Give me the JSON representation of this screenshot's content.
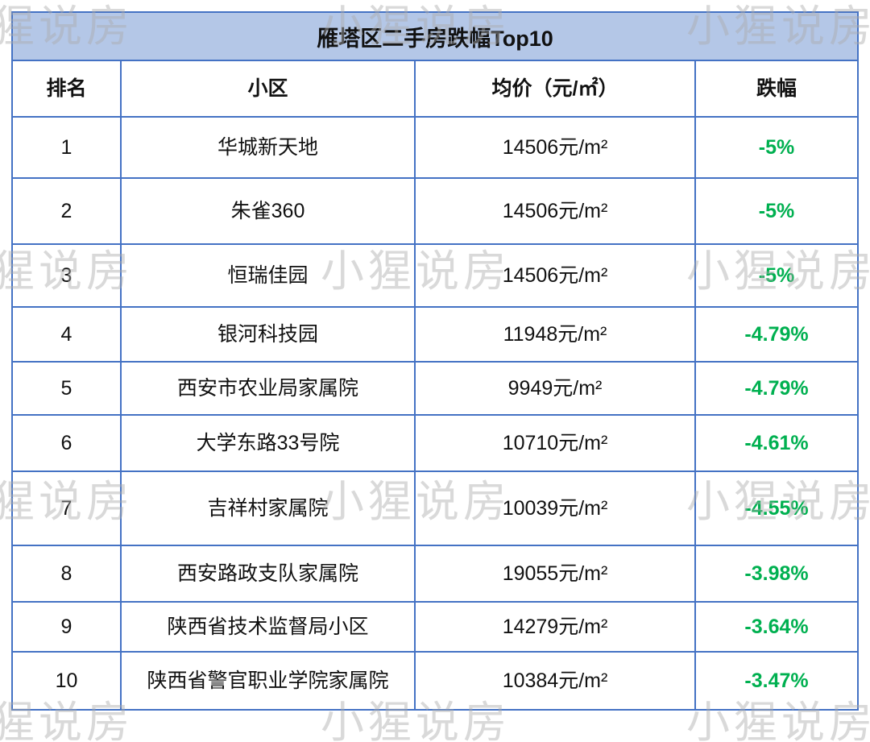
{
  "title": "雁塔区二手房跌幅Top10",
  "watermark": "小猩说房",
  "colors": {
    "border_blue": "#4472C4",
    "title_bg": "#B4C7E7",
    "drop_green": "#00B050",
    "watermark_gray": "#AAAAAA"
  },
  "table": {
    "headers": [
      "排名",
      "小区",
      "均价（元/㎡）",
      "跌幅"
    ],
    "rows": [
      {
        "rank": "1",
        "community": "华城新天地",
        "price": "14506元/m²",
        "drop": "-5%"
      },
      {
        "rank": "2",
        "community": "朱雀360",
        "price": "14506元/m²",
        "drop": "-5%"
      },
      {
        "rank": "3",
        "community": "恒瑞佳园",
        "price": "14506元/m²",
        "drop": "-5%"
      },
      {
        "rank": "4",
        "community": "银河科技园",
        "price": "11948元/m²",
        "drop": "-4.79%"
      },
      {
        "rank": "5",
        "community": "西安市农业局家属院",
        "price": "9949元/m²",
        "drop": "-4.79%"
      },
      {
        "rank": "6",
        "community": "大学东路33号院",
        "price": "10710元/m²",
        "drop": "-4.61%"
      },
      {
        "rank": "7",
        "community": "吉祥村家属院",
        "price": "10039元/m²",
        "drop": "-4.55%"
      },
      {
        "rank": "8",
        "community": "西安路政支队家属院",
        "price": "19055元/m²",
        "drop": "-3.98%"
      },
      {
        "rank": "9",
        "community": "陕西省技术监督局小区",
        "price": "14279元/m²",
        "drop": "-3.64%"
      },
      {
        "rank": "10",
        "community": "陕西省警官职业学院家属院",
        "price": "10384元/m²",
        "drop": "-3.47%"
      }
    ]
  },
  "chart_data": {
    "type": "table",
    "title": "雁塔区二手房跌幅Top10",
    "columns": [
      "排名",
      "小区",
      "均价（元/㎡）",
      "跌幅"
    ],
    "rows": [
      [
        1,
        "华城新天地",
        "14506元/m²",
        "-5%"
      ],
      [
        2,
        "朱雀360",
        "14506元/m²",
        "-5%"
      ],
      [
        3,
        "恒瑞佳园",
        "14506元/m²",
        "-5%"
      ],
      [
        4,
        "银河科技园",
        "11948元/m²",
        "-4.79%"
      ],
      [
        5,
        "西安市农业局家属院",
        "9949元/m²",
        "-4.79%"
      ],
      [
        6,
        "大学东路33号院",
        "10710元/m²",
        "-4.61%"
      ],
      [
        7,
        "吉祥村家属院",
        "10039元/m²",
        "-4.55%"
      ],
      [
        8,
        "西安路政支队家属院",
        "19055元/m²",
        "-3.98%"
      ],
      [
        9,
        "陕西省技术监督局小区",
        "14279元/m²",
        "-3.64%"
      ],
      [
        10,
        "陕西省警官职业学院家属院",
        "10384元/m²",
        "-3.47%"
      ]
    ]
  }
}
